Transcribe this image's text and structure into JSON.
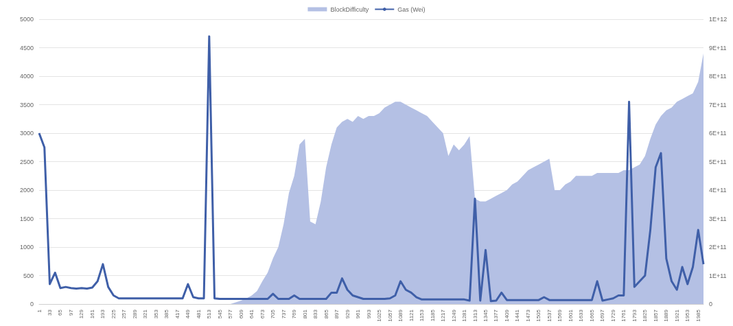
{
  "chart_data": {
    "type": "line",
    "legend": "top",
    "grid": "y",
    "marker": "none",
    "categories": [
      "1",
      null,
      "33",
      null,
      "65",
      null,
      "97",
      null,
      "129",
      null,
      "161",
      null,
      "193",
      null,
      "225",
      null,
      "257",
      null,
      "289",
      null,
      "321",
      null,
      "353",
      null,
      "385",
      null,
      "417",
      null,
      "449",
      null,
      "481",
      null,
      "513",
      null,
      "545",
      null,
      "577",
      null,
      "609",
      null,
      "641",
      null,
      "673",
      null,
      "705",
      null,
      "737",
      null,
      "769",
      null,
      "801",
      null,
      "833",
      null,
      "865",
      null,
      "897",
      null,
      "929",
      null,
      "961",
      null,
      "993",
      null,
      "1025",
      null,
      "1057",
      null,
      "1089",
      null,
      "1121",
      null,
      "1153",
      null,
      "1185",
      null,
      "1217",
      null,
      "1249",
      null,
      "1281",
      null,
      "1313",
      null,
      "1345",
      null,
      "1377",
      null,
      "1409",
      null,
      "1441",
      null,
      "1473",
      null,
      "1505",
      null,
      "1537",
      null,
      "1569",
      null,
      "1601",
      null,
      "1633",
      null,
      "1665",
      null,
      "1697",
      null,
      "1729",
      null,
      "1761",
      null,
      "1793",
      null,
      "1825",
      null,
      "1857",
      null,
      "1889",
      null,
      "1921",
      null,
      "1953",
      null,
      "1985",
      null
    ],
    "ylim": [
      0,
      5000
    ],
    "yticks": [
      0,
      500,
      1000,
      1500,
      2000,
      2500,
      3000,
      3500,
      4000,
      4500,
      5000
    ],
    "y2lim": [
      0,
      1000000000000.0
    ],
    "y2ticks": [
      0,
      {
        "value": 100000000000.0,
        "label": "1E+11"
      },
      {
        "value": 200000000000.0,
        "label": "2E+11"
      },
      {
        "value": 300000000000.0,
        "label": "3E+11"
      },
      {
        "value": 400000000000.0,
        "label": "4E+11"
      },
      {
        "value": 500000000000.0,
        "label": "5E+11"
      },
      {
        "value": 600000000000.0,
        "label": "6E+11"
      },
      {
        "value": 700000000000.0,
        "label": "7E+11"
      },
      {
        "value": 800000000000.0,
        "label": "8E+11"
      },
      {
        "value": 900000000000.0,
        "label": "9E+11"
      },
      {
        "value": 1000000000000.0,
        "label": "1E+12"
      }
    ],
    "series": [
      {
        "name": "BlockDifficulty",
        "type": "area",
        "axis": "y2",
        "color": "#b4c0e4",
        "values": [
          0,
          0,
          0,
          0,
          0,
          0,
          0,
          0,
          0,
          0,
          0,
          0,
          0,
          0,
          0,
          0,
          0,
          0,
          0,
          0,
          0,
          0,
          0,
          0,
          0,
          0,
          0,
          0,
          0,
          0,
          0,
          0,
          0,
          0,
          0,
          0,
          0,
          6000000000.0,
          12000000000.0,
          20000000000.0,
          30000000000.0,
          46000000000.0,
          80000000000.0,
          110000000000.0,
          160000000000.0,
          200000000000.0,
          280000000000.0,
          390000000000.0,
          450000000000.0,
          560000000000.0,
          580000000000.0,
          290000000000.0,
          280000000000.0,
          360000000000.0,
          480000000000.0,
          560000000000.0,
          620000000000.0,
          640000000000.0,
          650000000000.0,
          640000000000.0,
          660000000000.0,
          650000000000.0,
          660000000000.0,
          660000000000.0,
          670000000000.0,
          690000000000.0,
          700000000000.0,
          710000000000.0,
          710000000000.0,
          700000000000.0,
          690000000000.0,
          680000000000.0,
          670000000000.0,
          660000000000.0,
          640000000000.0,
          620000000000.0,
          600000000000.0,
          520000000000.0,
          560000000000.0,
          540000000000.0,
          560000000000.0,
          590000000000.0,
          370000000000.0,
          360000000000.0,
          360000000000.0,
          370000000000.0,
          380000000000.0,
          390000000000.0,
          400000000000.0,
          420000000000.0,
          430000000000.0,
          450000000000.0,
          470000000000.0,
          480000000000.0,
          490000000000.0,
          500000000000.0,
          510000000000.0,
          400000000000.0,
          400000000000.0,
          420000000000.0,
          430000000000.0,
          450000000000.0,
          450000000000.0,
          450000000000.0,
          450000000000.0,
          460000000000.0,
          460000000000.0,
          460000000000.0,
          460000000000.0,
          460000000000.0,
          470000000000.0,
          470000000000.0,
          480000000000.0,
          490000000000.0,
          520000000000.0,
          580000000000.0,
          630000000000.0,
          660000000000.0,
          680000000000.0,
          690000000000.0,
          710000000000.0,
          720000000000.0,
          730000000000.0,
          740000000000.0,
          780000000000.0,
          880000000000.0
        ]
      },
      {
        "name": "Gas (Wei)",
        "color": "#3f5fa8",
        "values": [
          3000,
          2750,
          350,
          550,
          280,
          300,
          280,
          270,
          280,
          270,
          290,
          400,
          700,
          300,
          150,
          100,
          100,
          100,
          100,
          100,
          100,
          100,
          100,
          100,
          100,
          100,
          100,
          100,
          350,
          120,
          100,
          100,
          4700,
          100,
          90,
          90,
          90,
          90,
          90,
          90,
          90,
          90,
          90,
          90,
          180,
          90,
          90,
          90,
          150,
          90,
          90,
          90,
          90,
          90,
          90,
          200,
          200,
          450,
          250,
          150,
          120,
          90,
          90,
          90,
          90,
          90,
          100,
          150,
          400,
          250,
          200,
          120,
          80,
          80,
          80,
          80,
          80,
          80,
          80,
          80,
          80,
          60,
          1850,
          60,
          950,
          50,
          60,
          200,
          70,
          70,
          70,
          70,
          70,
          70,
          70,
          120,
          70,
          70,
          70,
          70,
          70,
          70,
          70,
          70,
          70,
          400,
          60,
          80,
          100,
          150,
          150,
          3550,
          300,
          400,
          500,
          1300,
          2400,
          2650,
          800,
          400,
          250,
          650,
          350,
          650,
          1300,
          700
        ]
      }
    ]
  }
}
